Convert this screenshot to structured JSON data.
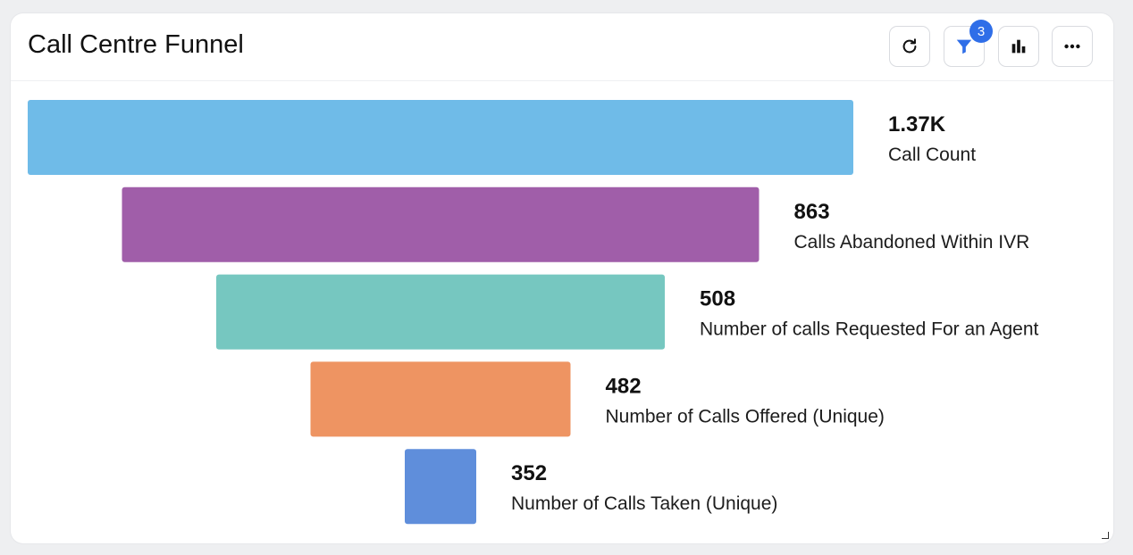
{
  "header": {
    "title": "Call Centre Funnel",
    "filter_badge_count": "3",
    "icons": [
      "refresh-icon",
      "filter-icon",
      "bar-chart-icon",
      "more-icon"
    ]
  },
  "colors": {
    "stages": [
      "#6fbbe8",
      "#a05ea9",
      "#76c7c0",
      "#ee9462",
      "#5f8edb"
    ],
    "accent": "#2f6ee8"
  },
  "chart_data": {
    "type": "funnel",
    "title": "Call Centre Funnel",
    "stages": [
      {
        "label": "Call Count",
        "value": 1370,
        "display": "1.37K"
      },
      {
        "label": "Calls Abandoned Within IVR",
        "value": 863,
        "display": "863"
      },
      {
        "label": "Number of calls Requested For an Agent",
        "value": 508,
        "display": "508"
      },
      {
        "label": "Number of Calls Offered (Unique)",
        "value": 482,
        "display": "482"
      },
      {
        "label": "Number of Calls Taken (Unique)",
        "value": 352,
        "display": "352"
      }
    ]
  }
}
